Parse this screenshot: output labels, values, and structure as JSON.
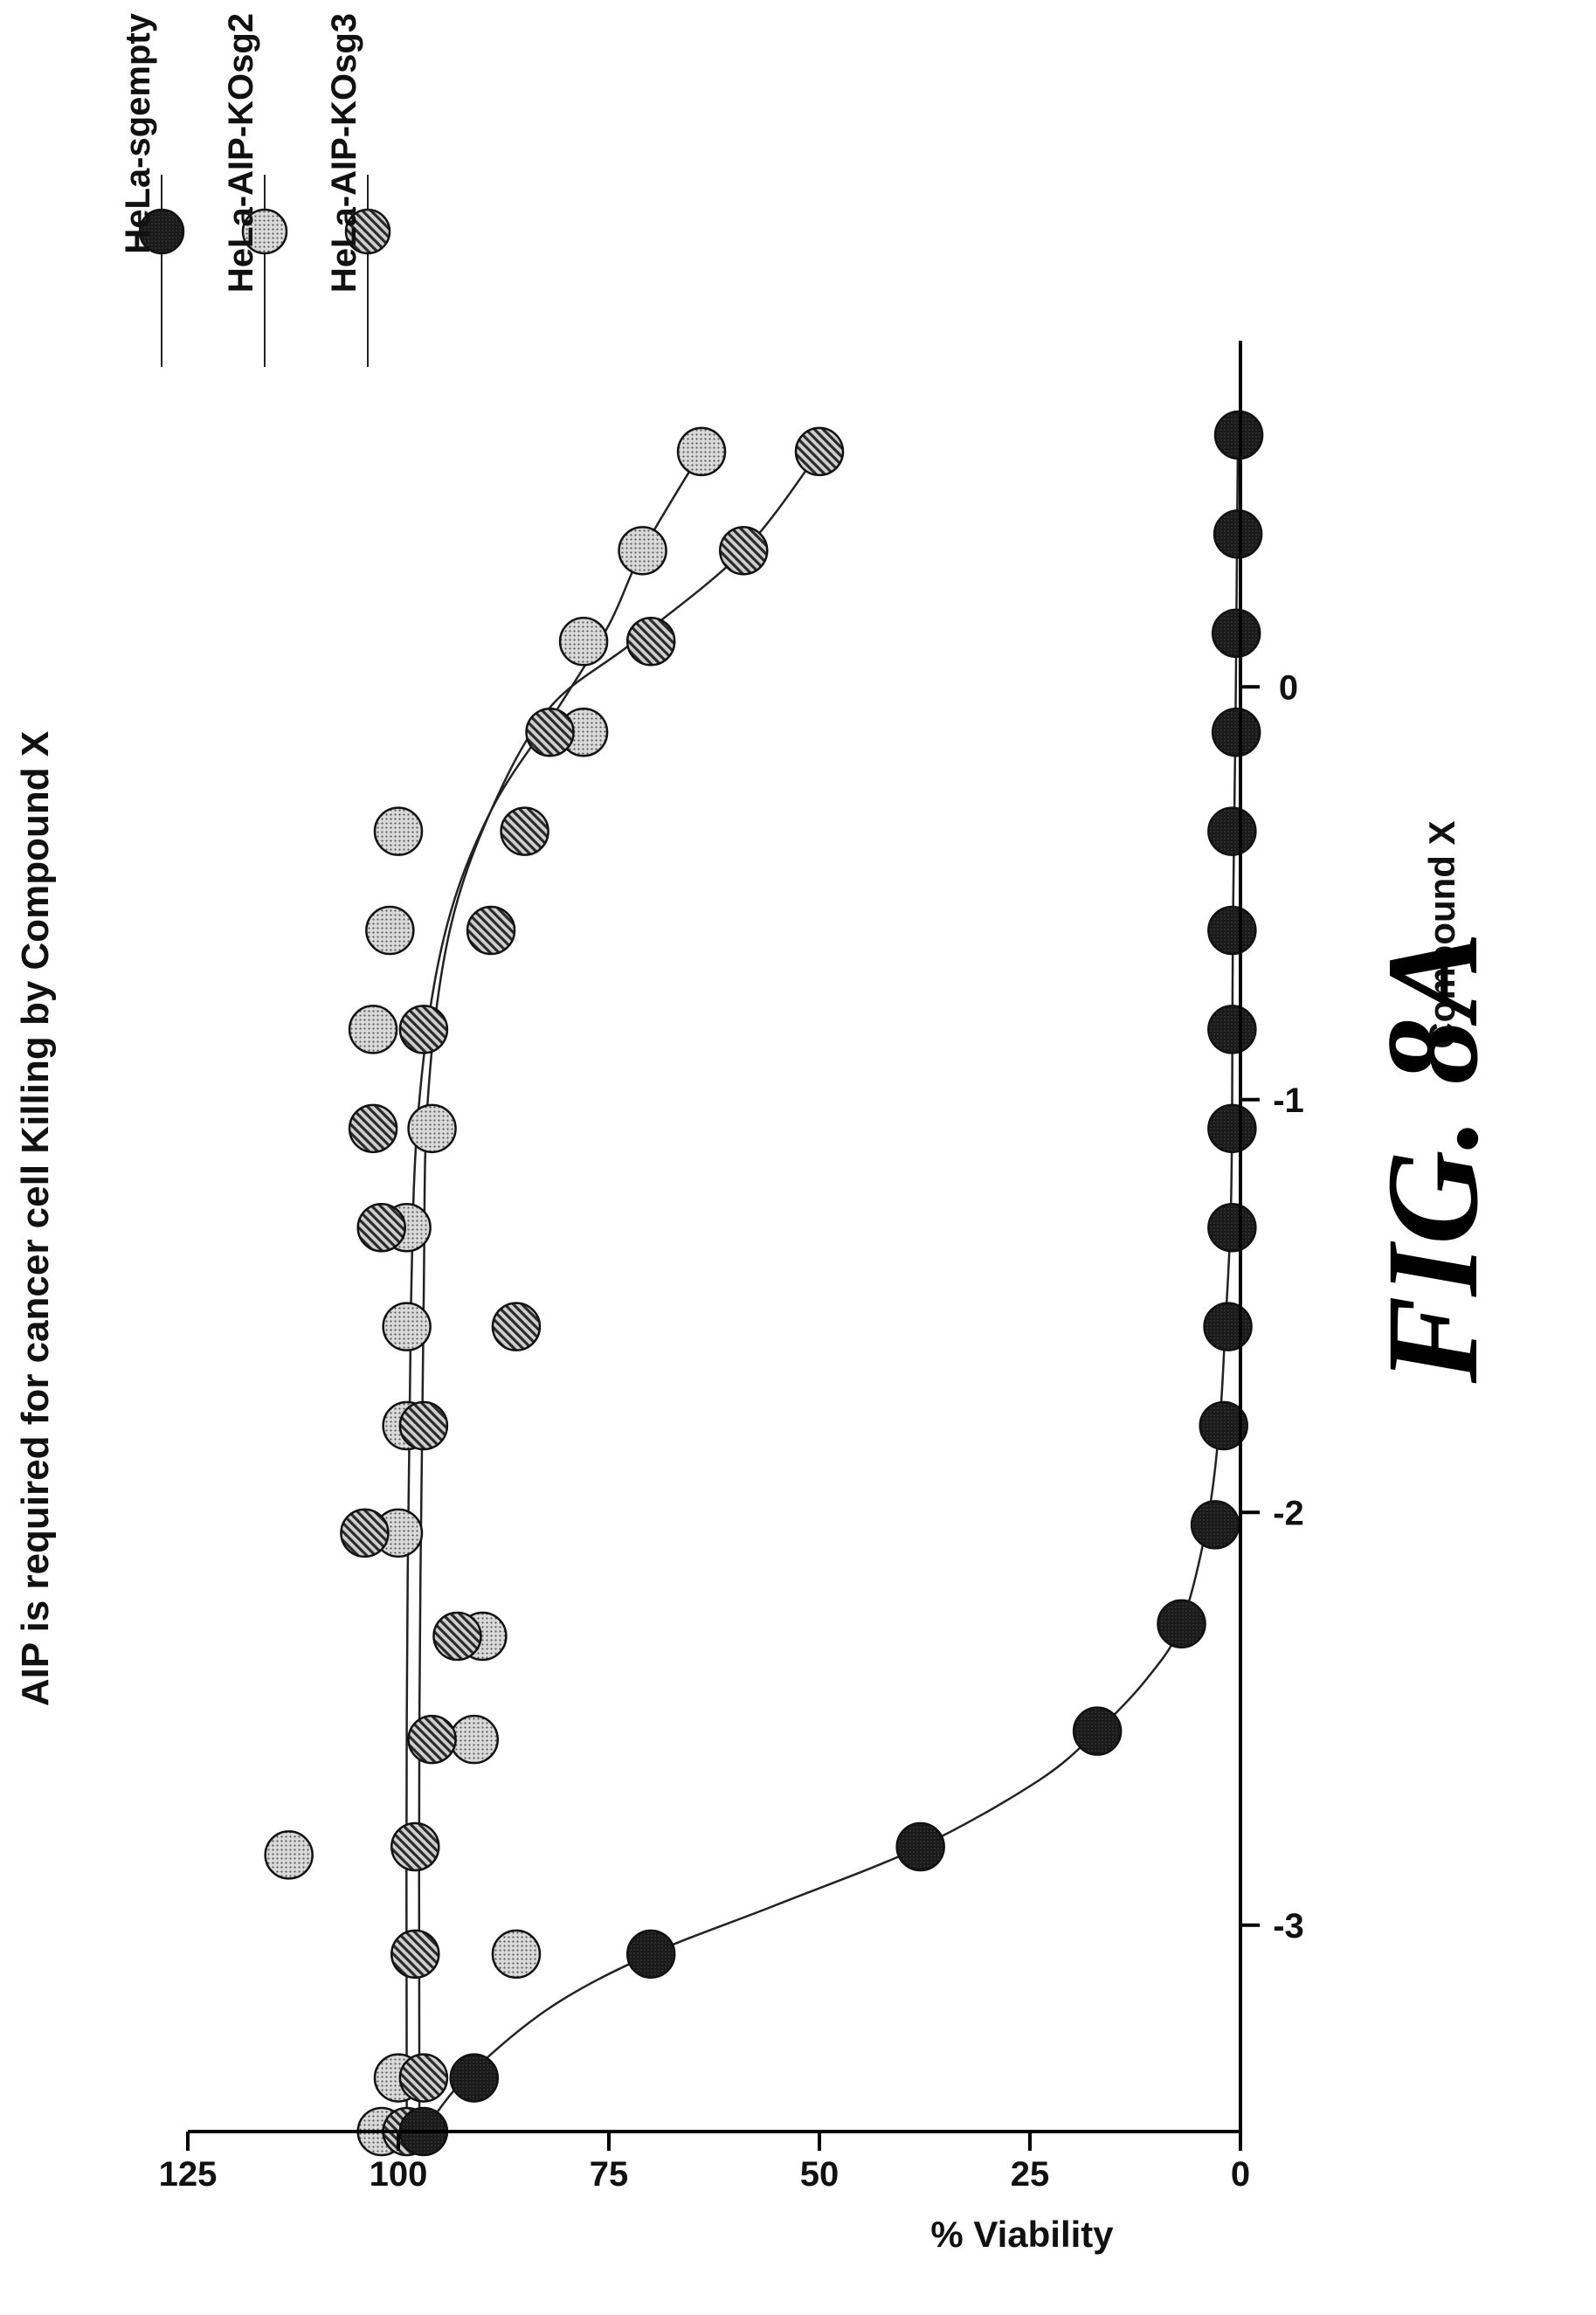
{
  "chart_data": {
    "type": "scatter",
    "title": "AIP is required for cancer cell Killing by Compound X",
    "xlabel": "Compound X",
    "ylabel": "% Viability",
    "xlim": [
      -3.5,
      0.5
    ],
    "ylim": [
      0,
      125
    ],
    "xticks": [
      -3,
      -2,
      -1,
      0
    ],
    "xtick_labels": [
      "-3",
      "-2",
      "-1",
      "0"
    ],
    "yticks": [
      0,
      25,
      50,
      75,
      100,
      125
    ],
    "ytick_labels": [
      "0",
      "25",
      "50",
      "75",
      "100",
      "125"
    ],
    "figure_label": "FIG. 8A",
    "legend_position": "right",
    "series": [
      {
        "name": "HeLa-sgempty",
        "marker": "solid",
        "color": "#111111",
        "points": [
          [
            -3.5,
            97
          ],
          [
            -3.37,
            91
          ],
          [
            -3.07,
            70
          ],
          [
            -2.81,
            38
          ],
          [
            -2.53,
            17
          ],
          [
            -2.27,
            7
          ],
          [
            -2.03,
            3
          ],
          [
            -1.79,
            2
          ],
          [
            -1.55,
            1.5
          ],
          [
            -1.31,
            1
          ],
          [
            -1.07,
            1
          ],
          [
            -0.83,
            1
          ],
          [
            -0.59,
            1
          ],
          [
            -0.35,
            1
          ],
          [
            -0.11,
            0.5
          ],
          [
            0.13,
            0.5
          ],
          [
            0.37,
            0.3
          ],
          [
            0.61,
            0.2
          ]
        ],
        "fit": [
          [
            -3.5,
            97
          ],
          [
            -3.37,
            92
          ],
          [
            -3.2,
            82
          ],
          [
            -3.07,
            70
          ],
          [
            -2.95,
            55
          ],
          [
            -2.81,
            38
          ],
          [
            -2.65,
            24
          ],
          [
            -2.53,
            17
          ],
          [
            -2.4,
            11
          ],
          [
            -2.27,
            7
          ],
          [
            -2.03,
            4
          ],
          [
            -1.79,
            2.5
          ],
          [
            -1.55,
            1.8
          ],
          [
            -1.31,
            1.2
          ],
          [
            -1.07,
            1
          ],
          [
            -0.59,
            0.9
          ],
          [
            -0.11,
            0.6
          ],
          [
            0.37,
            0.4
          ],
          [
            0.61,
            0.3
          ]
        ]
      },
      {
        "name": "HeLa-AIP-KOsg2",
        "marker": "dotted",
        "color": "#bdbdbd",
        "points": [
          [
            -3.5,
            102
          ],
          [
            -3.37,
            100
          ],
          [
            -3.07,
            86
          ],
          [
            -2.83,
            113
          ],
          [
            -2.55,
            91
          ],
          [
            -2.3,
            90
          ],
          [
            -2.05,
            100
          ],
          [
            -1.79,
            99
          ],
          [
            -1.55,
            99
          ],
          [
            -1.31,
            99
          ],
          [
            -1.07,
            96
          ],
          [
            -0.83,
            103
          ],
          [
            -0.59,
            101
          ],
          [
            -0.35,
            100
          ],
          [
            -0.11,
            78
          ],
          [
            0.11,
            78
          ],
          [
            0.33,
            71
          ],
          [
            0.57,
            64
          ]
        ],
        "fit": [
          [
            -3.5,
            99
          ],
          [
            -2.5,
            99
          ],
          [
            -1.5,
            98.5
          ],
          [
            -1.0,
            97.5
          ],
          [
            -0.6,
            94.5
          ],
          [
            -0.3,
            89
          ],
          [
            -0.05,
            81
          ],
          [
            0.15,
            75
          ],
          [
            0.33,
            71
          ],
          [
            0.57,
            64
          ]
        ]
      },
      {
        "name": "HeLa-AIP-KOsg3",
        "marker": "hatched",
        "color": "#888888",
        "points": [
          [
            -3.5,
            99
          ],
          [
            -3.37,
            97
          ],
          [
            -3.07,
            98
          ],
          [
            -2.81,
            98
          ],
          [
            -2.55,
            96
          ],
          [
            -2.3,
            93
          ],
          [
            -2.05,
            104
          ],
          [
            -1.79,
            97
          ],
          [
            -1.55,
            86
          ],
          [
            -1.31,
            102
          ],
          [
            -1.07,
            103
          ],
          [
            -0.83,
            97
          ],
          [
            -0.59,
            89
          ],
          [
            -0.35,
            85
          ],
          [
            -0.11,
            82
          ],
          [
            0.11,
            70
          ],
          [
            0.33,
            59
          ],
          [
            0.57,
            50
          ]
        ],
        "fit": [
          [
            -3.5,
            97.5
          ],
          [
            -2.5,
            97.5
          ],
          [
            -1.5,
            97
          ],
          [
            -1.0,
            96.5
          ],
          [
            -0.6,
            94
          ],
          [
            -0.3,
            89
          ],
          [
            -0.05,
            82
          ],
          [
            0.11,
            72
          ],
          [
            0.33,
            59
          ],
          [
            0.57,
            50
          ]
        ]
      }
    ]
  }
}
